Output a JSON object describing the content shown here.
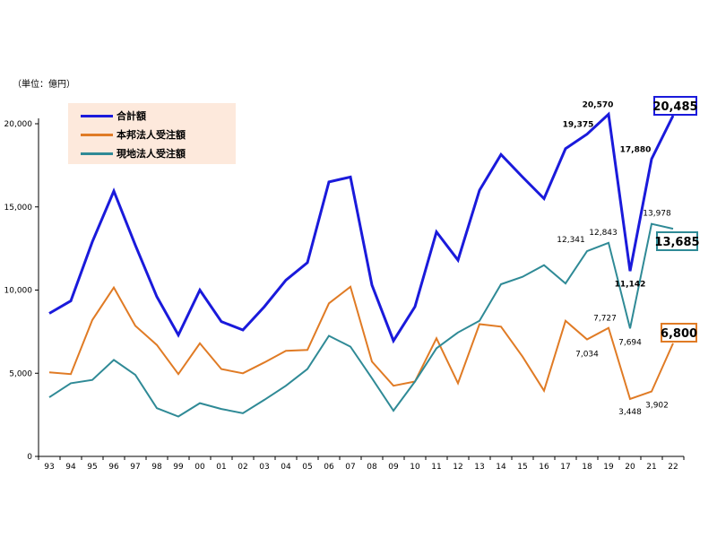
{
  "unit_label": "（単位：億円）",
  "legend": [
    {
      "label": "合計額",
      "color": "#1a1adb"
    },
    {
      "label": "本邦法人受注額",
      "color": "#e07b25"
    },
    {
      "label": "現地法人受注額",
      "color": "#2f8a96"
    }
  ],
  "chart_data": {
    "type": "line",
    "x": [
      "93",
      "94",
      "95",
      "96",
      "97",
      "98",
      "99",
      "00",
      "01",
      "02",
      "03",
      "04",
      "05",
      "06",
      "07",
      "08",
      "09",
      "10",
      "11",
      "12",
      "13",
      "14",
      "15",
      "16",
      "17",
      "18",
      "19",
      "20",
      "21",
      "22"
    ],
    "ylim": [
      0,
      20000
    ],
    "yticks": [
      0,
      5000,
      10000,
      15000,
      20000
    ],
    "ytick_labels": [
      "0",
      "5,000",
      "10,000",
      "15,000",
      "20,000"
    ],
    "grid": false,
    "legend_position": "top-left",
    "series": [
      {
        "name": "合計額",
        "color": "#1a1adb",
        "values": [
          8600,
          9350,
          12900,
          15950,
          12700,
          9600,
          7300,
          10000,
          8100,
          7600,
          9000,
          10600,
          11650,
          16500,
          16800,
          10300,
          6950,
          9000,
          13500,
          11800,
          16000,
          18150,
          16800,
          15500,
          18500,
          19375,
          20570,
          11142,
          17880,
          20485
        ]
      },
      {
        "name": "本邦法人受注額",
        "color": "#e07b25",
        "values": [
          5050,
          4950,
          8200,
          10150,
          7850,
          6700,
          4950,
          6800,
          5250,
          5000,
          5650,
          6350,
          6400,
          9200,
          10200,
          5700,
          4250,
          4500,
          7100,
          4400,
          7950,
          7800,
          6000,
          3950,
          8150,
          7034,
          7727,
          3448,
          3902,
          6800
        ]
      },
      {
        "name": "現地法人受注額",
        "color": "#2f8a96",
        "values": [
          3550,
          4400,
          4600,
          5800,
          4900,
          2900,
          2400,
          3200,
          2850,
          2600,
          3400,
          4250,
          5250,
          7250,
          6600,
          4700,
          2750,
          4500,
          6500,
          7450,
          8150,
          10350,
          10800,
          11500,
          10400,
          12341,
          12843,
          7694,
          13978,
          13685
        ]
      }
    ],
    "annotations": [
      {
        "series": 0,
        "index": 25,
        "text": "19,375"
      },
      {
        "series": 0,
        "index": 26,
        "text": "20,570"
      },
      {
        "series": 0,
        "index": 27,
        "text": "11,142"
      },
      {
        "series": 0,
        "index": 28,
        "text": "17,880"
      },
      {
        "series": 1,
        "index": 25,
        "text": "7,034"
      },
      {
        "series": 1,
        "index": 26,
        "text": "7,727"
      },
      {
        "series": 1,
        "index": 27,
        "text": "3,448"
      },
      {
        "series": 1,
        "index": 28,
        "text": "3,902"
      },
      {
        "series": 2,
        "index": 25,
        "text": "12,341"
      },
      {
        "series": 2,
        "index": 26,
        "text": "12,843"
      },
      {
        "series": 2,
        "index": 27,
        "text": "7,694"
      },
      {
        "series": 2,
        "index": 28,
        "text": "13,978"
      }
    ],
    "boxed_labels": [
      {
        "series": 0,
        "text": "20,485",
        "border": "#1a1adb"
      },
      {
        "series": 2,
        "text": "13,685",
        "border": "#2f8a96"
      },
      {
        "series": 1,
        "text": "6,800",
        "border": "#e07b25"
      }
    ]
  }
}
